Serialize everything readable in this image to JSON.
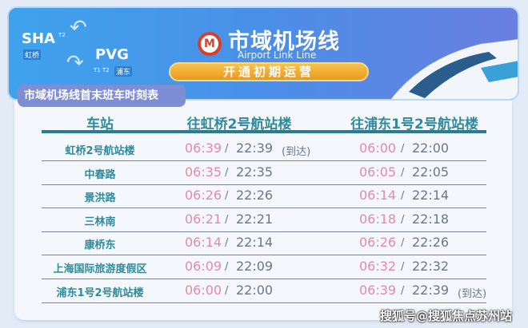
{
  "banner": {
    "sha": "SHA",
    "sha_terminal": "T2",
    "sha_cn": "虹桥",
    "pvg": "PVG",
    "pvg_terminal": "T1 T2",
    "pvg_cn": "浦东",
    "title": "市域机场线",
    "subtitle": "Airport Link Line",
    "status": "开通初期运营"
  },
  "table": {
    "title": "市域机场线首末班车时刻表",
    "headers": [
      "车站",
      "往虹桥2号航站楼",
      "往浦东1号2号航站楼"
    ],
    "rows": [
      {
        "station": "虹桥2号航站楼",
        "a_first": "06:39",
        "a_last": "22:39",
        "a_note": "(到达)",
        "b_first": "06:00",
        "b_last": "22:00",
        "b_note": ""
      },
      {
        "station": "中春路",
        "a_first": "06:35",
        "a_last": "22:35",
        "a_note": "",
        "b_first": "06:05",
        "b_last": "22:05",
        "b_note": ""
      },
      {
        "station": "景洪路",
        "a_first": "06:26",
        "a_last": "22:26",
        "a_note": "",
        "b_first": "06:14",
        "b_last": "22:14",
        "b_note": ""
      },
      {
        "station": "三林南",
        "a_first": "06:21",
        "a_last": "22:21",
        "a_note": "",
        "b_first": "06:18",
        "b_last": "22:18",
        "b_note": ""
      },
      {
        "station": "康桥东",
        "a_first": "06:14",
        "a_last": "22:14",
        "a_note": "",
        "b_first": "06:26",
        "b_last": "22:26",
        "b_note": ""
      },
      {
        "station": "上海国际旅游度假区",
        "a_first": "06:09",
        "a_last": "22:09",
        "a_note": "",
        "b_first": "06:32",
        "b_last": "22:32",
        "b_note": ""
      },
      {
        "station": "浦东1号2号航站楼",
        "a_first": "06:00",
        "a_last": "22:00",
        "a_note": "",
        "b_first": "06:39",
        "b_last": "22:39",
        "b_note": "(到达)"
      }
    ],
    "separator": "/"
  },
  "watermark": "搜狐号@搜狐焦点苏州站",
  "colors": {
    "first_train": "#e38aa8",
    "last_train": "#6c7684",
    "header": "#2e8a9c",
    "status_pill": "#f0a92e"
  }
}
